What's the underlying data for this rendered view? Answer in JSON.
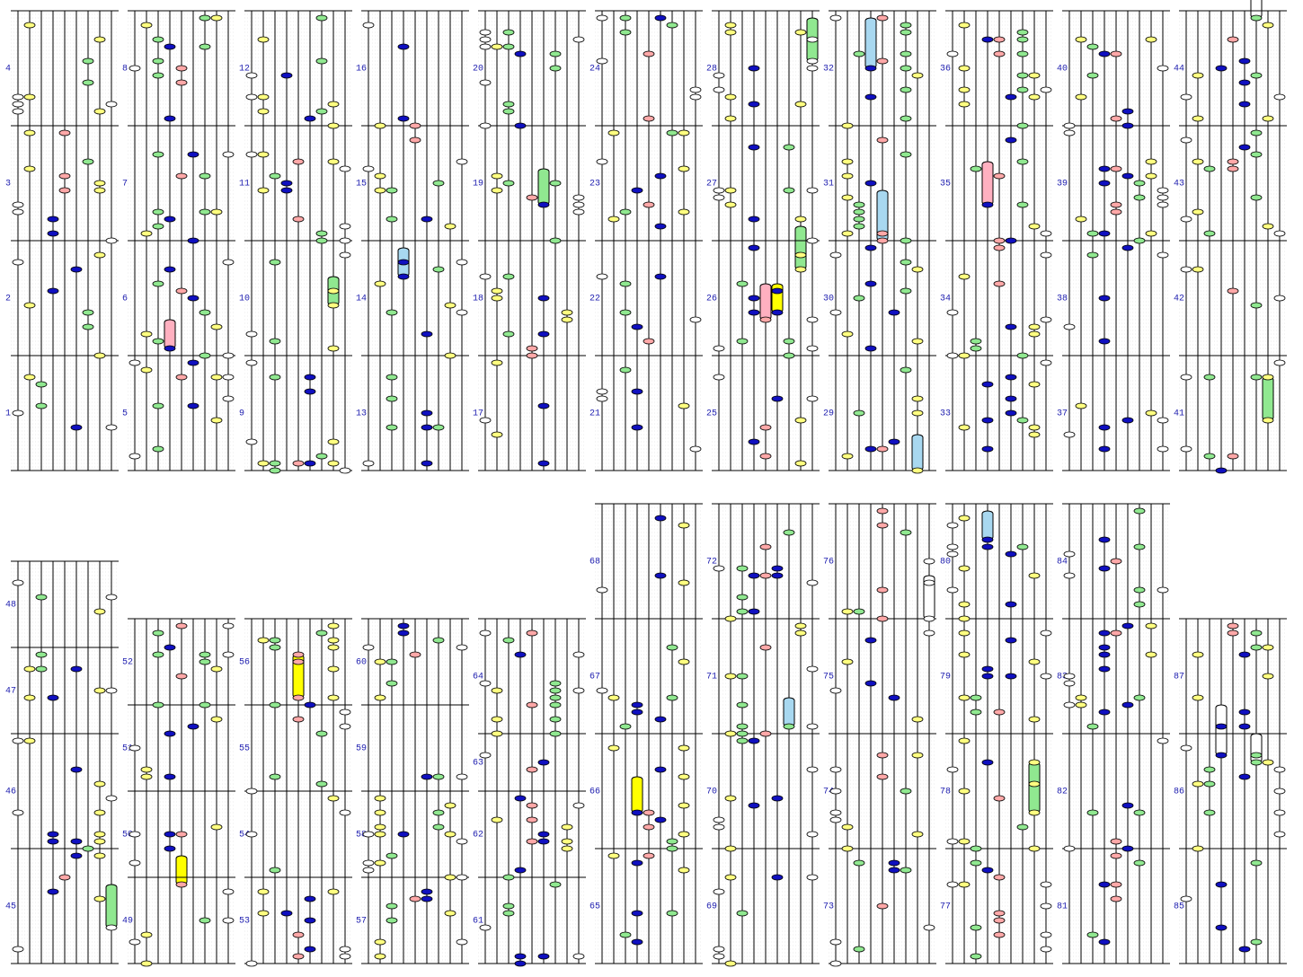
{
  "columns": [
    [
      1,
      2,
      3,
      4
    ],
    [
      5,
      6,
      7,
      8
    ],
    [
      9,
      10,
      11,
      12
    ],
    [
      13,
      14,
      15,
      16
    ],
    [
      17,
      18,
      19,
      20
    ],
    [
      21,
      22,
      23,
      24
    ],
    [
      25,
      26,
      27,
      28
    ],
    [
      29,
      30,
      31,
      32
    ],
    [
      33,
      34,
      35,
      36
    ],
    [
      37,
      38,
      39,
      40
    ],
    [
      41,
      42,
      43,
      44
    ],
    [
      45,
      46,
      47,
      48
    ],
    [
      49,
      50,
      51,
      52
    ],
    [
      53,
      54,
      55,
      56
    ],
    [
      57,
      58,
      59,
      60
    ],
    [
      61,
      62,
      63,
      64
    ],
    [
      65,
      66,
      67,
      68
    ],
    [
      69,
      70,
      71,
      72
    ],
    [
      73,
      74,
      75,
      76
    ],
    [
      77,
      78,
      79,
      80
    ],
    [
      81,
      82,
      83,
      84
    ],
    [
      85,
      86,
      87
    ]
  ]
}
